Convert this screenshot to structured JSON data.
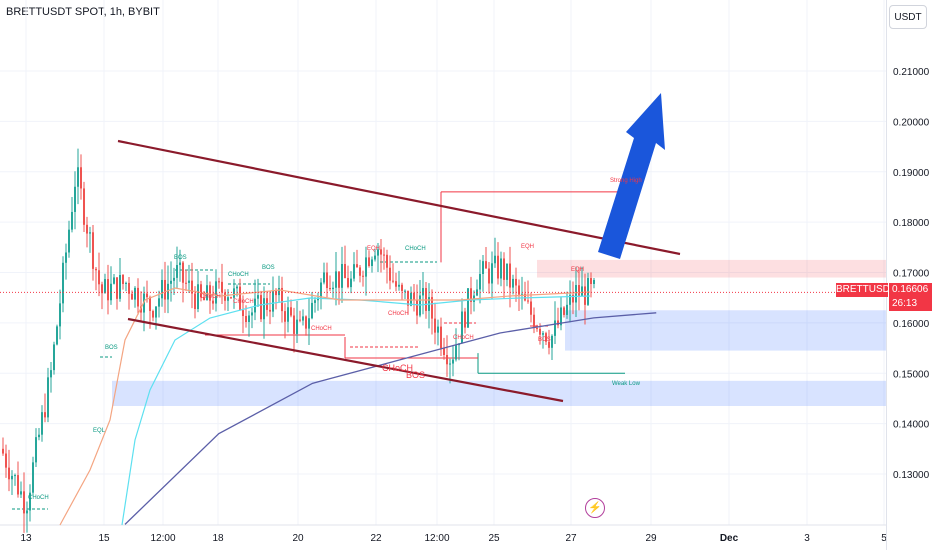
{
  "header": {
    "title": "BRETTUSDT SPOT, 1h, BYBIT"
  },
  "price_axis": {
    "currency": "USDT"
  },
  "last_price": {
    "symbol": "BRETTUSDT",
    "value": "0.16606",
    "countdown": "26:13"
  },
  "colors": {
    "up": "#26a69a",
    "down": "#ef5350",
    "trendline": "#8b1a2b",
    "arrow": "#1a56db",
    "ma200": "#5b5fa8",
    "ma_cyan": "#5de0f0",
    "ma_orange": "#f4a582"
  },
  "chart_data": {
    "type": "line",
    "title": "BRETTUSDT SPOT, 1h, BYBIT",
    "ylim": [
      0.12,
      0.22
    ],
    "y_ticks": [
      "0.21000",
      "0.20000",
      "0.19000",
      "0.18000",
      "0.17000",
      "0.16000",
      "0.15000",
      "0.14000",
      "0.13000"
    ],
    "y_tick_values": [
      0.21,
      0.2,
      0.19,
      0.18,
      0.17,
      0.16,
      0.15,
      0.14,
      0.13
    ],
    "x_ticks": [
      "13",
      "15",
      "12:00",
      "18",
      "20",
      "22",
      "12:00",
      "25",
      "27",
      "29",
      "Dec",
      "3",
      "5"
    ],
    "price_series": {
      "name": "BRETTUSDT",
      "x": [
        0,
        4,
        8,
        12,
        16,
        20,
        24,
        28,
        32,
        36,
        40,
        44,
        48,
        52,
        56,
        60,
        64,
        68,
        72,
        76,
        80,
        84,
        88,
        92,
        96,
        100
      ],
      "y": [
        0.135,
        0.124,
        0.15,
        0.19,
        0.166,
        0.168,
        0.163,
        0.17,
        0.164,
        0.167,
        0.162,
        0.165,
        0.158,
        0.17,
        0.168,
        0.176,
        0.165,
        0.164,
        0.153,
        0.169,
        0.171,
        0.163,
        0.157,
        0.166,
        0.166,
        0.166
      ]
    },
    "ma200": {
      "name": "MA",
      "x": [
        15,
        30,
        45,
        60,
        75,
        90,
        100
      ],
      "y": [
        0.12,
        0.138,
        0.148,
        0.153,
        0.158,
        0.161,
        0.162
      ]
    },
    "annotations": [
      "CHoCH",
      "BOS",
      "EQL",
      "BOS",
      "CHoCH",
      "BOS",
      "CHoCH",
      "CHoCH",
      "CHoCH",
      "CHoCH",
      "EQH",
      "CHoCH",
      "CHoCH",
      "CHoCH",
      "BOS",
      "EQH",
      "EQH",
      "BOS",
      "Strong High",
      "Weak Low"
    ],
    "zones": [
      {
        "kind": "supply",
        "y": [
          0.169,
          0.1725
        ]
      },
      {
        "kind": "demand",
        "y": [
          0.1545,
          0.1625
        ]
      },
      {
        "kind": "demand",
        "y": [
          0.1435,
          0.1485
        ]
      }
    ],
    "trendlines": [
      {
        "from": [
          0.196
        ],
        "to": [
          0.1735
        ]
      },
      {
        "from": [
          0.1605
        ],
        "to": [
          0.144
        ]
      }
    ],
    "strong_high": 0.186,
    "weak_low": 0.15,
    "grid": true,
    "legend": "none"
  }
}
